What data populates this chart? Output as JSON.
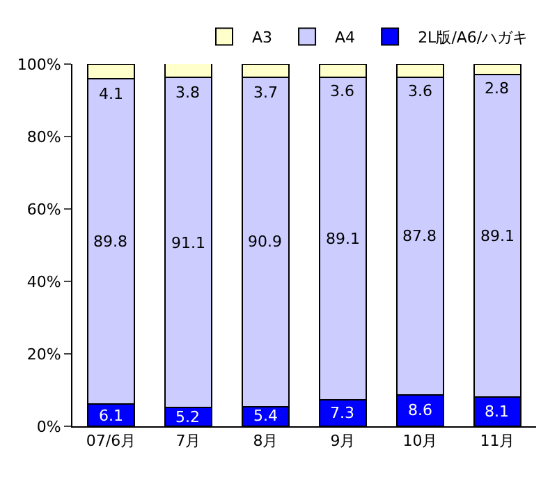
{
  "chart_data": {
    "type": "bar",
    "stacked": true,
    "categories": [
      "07/6月",
      "7月",
      "8月",
      "9月",
      "10月",
      "11月"
    ],
    "series": [
      {
        "name": "2L版/A6/ハガキ",
        "color": "#0000ff",
        "values": [
          6.1,
          5.2,
          5.4,
          7.3,
          8.6,
          8.1
        ]
      },
      {
        "name": "A4",
        "color": "#ccccff",
        "values": [
          89.8,
          91.1,
          90.9,
          89.1,
          87.8,
          89.1
        ]
      },
      {
        "name": "A3",
        "color": "#ffffcc",
        "values": [
          4.1,
          3.8,
          3.7,
          3.6,
          3.6,
          2.8
        ]
      }
    ],
    "ylim": [
      0,
      100
    ],
    "yticks": [
      {
        "value": 0,
        "label": "0%"
      },
      {
        "value": 20,
        "label": "20%"
      },
      {
        "value": 40,
        "label": "40%"
      },
      {
        "value": 60,
        "label": "60%"
      },
      {
        "value": 80,
        "label": "80%"
      },
      {
        "value": 100,
        "label": "100%"
      }
    ],
    "data_labels": true,
    "legend": "top right",
    "grid": false
  }
}
